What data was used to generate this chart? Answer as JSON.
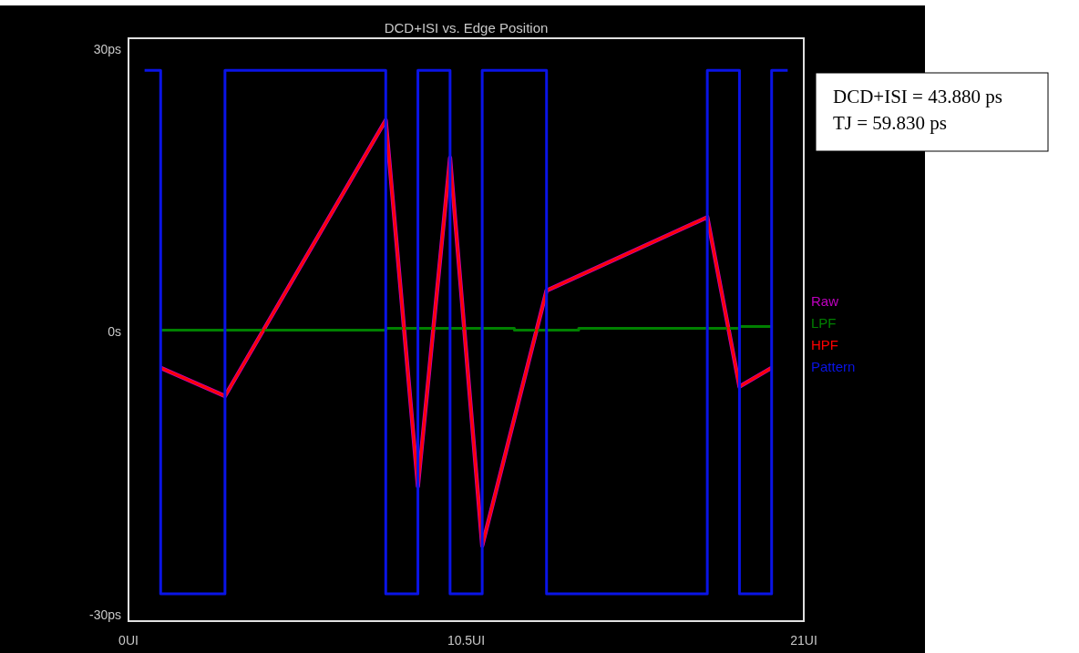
{
  "chart_data": {
    "type": "line",
    "title": "DCD+ISI vs. Edge Position",
    "xlim": [
      0,
      21
    ],
    "xticks": [
      {
        "value": 0,
        "label": "0UI"
      },
      {
        "value": 10.5,
        "label": "10.5UI"
      },
      {
        "value": 21,
        "label": "21UI"
      }
    ],
    "ylim": [
      -30.7,
      31.2
    ],
    "yticks": [
      {
        "value": 30,
        "label": "30ps"
      },
      {
        "value": 0,
        "label": "0s"
      },
      {
        "value": -30,
        "label": "-30ps"
      }
    ],
    "grid": false,
    "legend": "right",
    "series": [
      {
        "name": "Raw",
        "color": "#c000c0",
        "x": [
          1,
          3,
          8,
          9,
          10,
          11,
          13,
          18,
          19,
          20
        ],
        "values": [
          -3.8,
          -6.8,
          22.5,
          -16.4,
          18.5,
          -22.7,
          4.4,
          12.2,
          -5.8,
          -3.8
        ]
      },
      {
        "name": "LPF",
        "color": "#008000",
        "type": "step",
        "x": [
          1,
          8,
          12,
          14,
          19,
          20
        ],
        "values": [
          0.2,
          0.4,
          0.2,
          0.4,
          0.6,
          0.6
        ]
      },
      {
        "name": "HPF",
        "color": "#ff0000",
        "x": [
          1,
          3,
          8,
          9,
          10,
          11,
          13,
          18,
          19,
          20
        ],
        "values": [
          -3.8,
          -6.8,
          22.5,
          -16.4,
          18.5,
          -22.7,
          4.4,
          12.2,
          -5.8,
          -3.8
        ]
      },
      {
        "name": "Pattern",
        "color": "#0a14e6",
        "type": "step",
        "x": [
          0.5,
          1,
          3,
          8,
          9,
          10,
          11,
          13,
          18,
          19,
          20,
          20.5
        ],
        "values": [
          27.8,
          -27.8,
          27.8,
          -27.8,
          27.8,
          -27.8,
          27.8,
          -27.8,
          27.8,
          -27.8,
          27.8,
          27.8
        ]
      }
    ],
    "annotations": [
      "DCD+ISI = 43.880 ps",
      "TJ = 59.830 ps"
    ]
  }
}
